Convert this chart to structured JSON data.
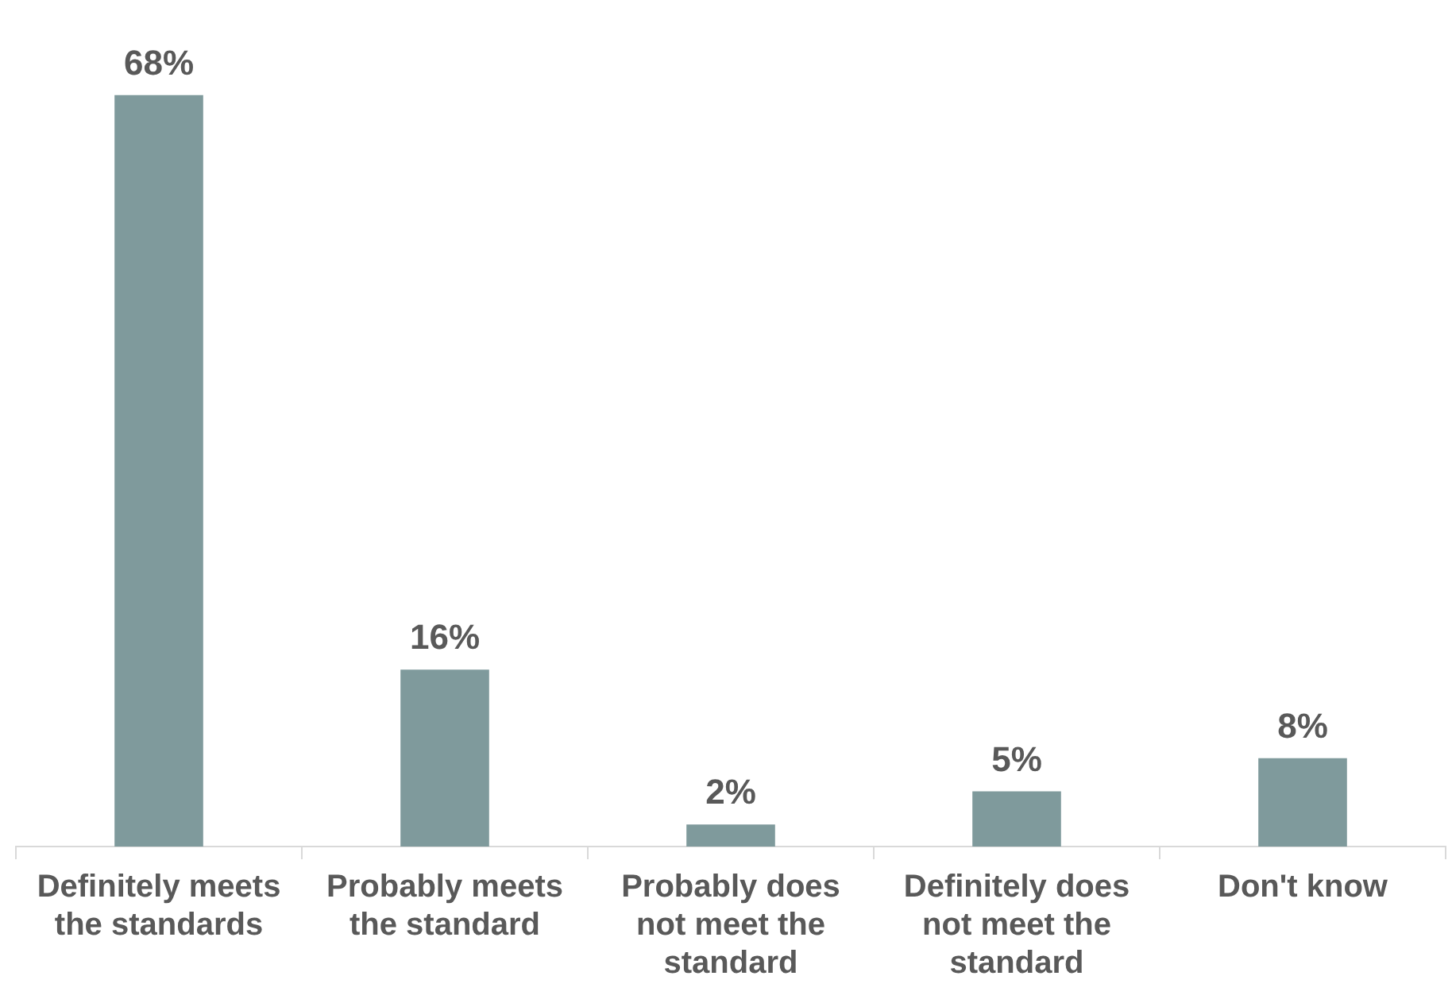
{
  "chart_data": {
    "type": "bar",
    "categories": [
      "Definitely meets the standards",
      "Probably meets the standard",
      "Probably does not meet the standard",
      "Definitely does not meet the standard",
      "Don't know"
    ],
    "values": [
      68,
      16,
      2,
      5,
      8
    ],
    "value_labels": [
      "68%",
      "16%",
      "2%",
      "5%",
      "8%"
    ],
    "color": "#7f9a9c",
    "grid": false,
    "legend": false
  }
}
